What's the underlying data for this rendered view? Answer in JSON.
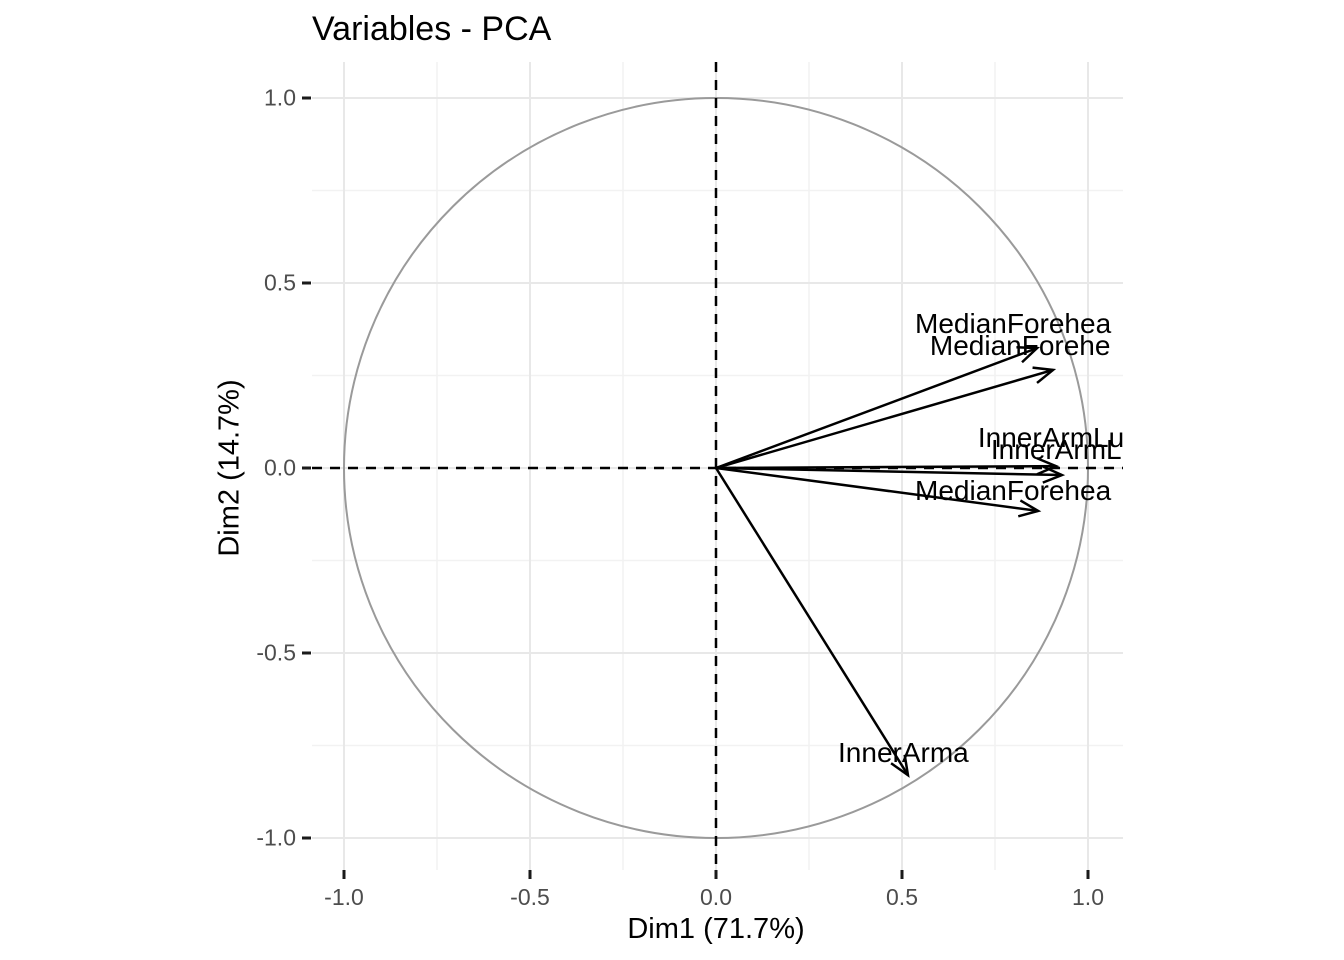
{
  "figure": {
    "title": "Variables - PCA"
  },
  "chart_data": {
    "type": "scatter",
    "subtype": "pca-variables-correlation-circle",
    "title": "Variables - PCA",
    "xlabel": "Dim1 (71.7%)",
    "ylabel": "Dim2 (14.7%)",
    "xlim": [
      -1.09,
      1.09
    ],
    "ylim": [
      -1.1,
      1.09
    ],
    "x_ticks": [
      -1.0,
      -0.5,
      0.0,
      0.5,
      1.0
    ],
    "x_tick_labels": [
      "-1.0",
      "-0.5",
      "0.0",
      "0.5",
      "1.0"
    ],
    "y_ticks": [
      1.0,
      0.5,
      0.0,
      -0.5,
      -1.0
    ],
    "y_tick_labels": [
      "1.0",
      "0.5",
      "0.0",
      "-0.5",
      "-1.0"
    ],
    "minor_ticks": [
      -0.75,
      -0.25,
      0.25,
      0.75
    ],
    "grid": "major and minor gridlines, light gray, on white panel",
    "unit_circle": true,
    "reference_lines": {
      "x": 0,
      "y": 0,
      "style": "dashed black"
    },
    "legend": "none",
    "arrows": [
      {
        "label": "MedianForehea",
        "x": 0.863,
        "y": 0.324,
        "label_x": 0.535,
        "label_y": 0.392
      },
      {
        "label": "MedianForehe",
        "x": 0.906,
        "y": 0.265,
        "label_x": 0.575,
        "label_y": 0.332
      },
      {
        "label": "InnerArmLu",
        "x": 0.914,
        "y": 0.005,
        "label_x": 0.704,
        "label_y": 0.084
      },
      {
        "label": "InnerArmL",
        "x": 0.93,
        "y": -0.019,
        "label_x": 0.739,
        "label_y": 0.051
      },
      {
        "label": "MedianForehea",
        "x": 0.866,
        "y": -0.116,
        "label_x": 0.535,
        "label_y": -0.059
      },
      {
        "label": "InnerArma",
        "x": 0.516,
        "y": -0.83,
        "label_x": 0.328,
        "label_y": -0.768
      }
    ],
    "colors": {
      "arrow": "#000000",
      "circle": "#9a9a9a",
      "grid_major": "#e8e8e8",
      "grid_minor": "#f2f2f2",
      "axis_text": "#4d4d4d",
      "tick_mark": "#1a1a1a",
      "background": "#ffffff"
    }
  }
}
